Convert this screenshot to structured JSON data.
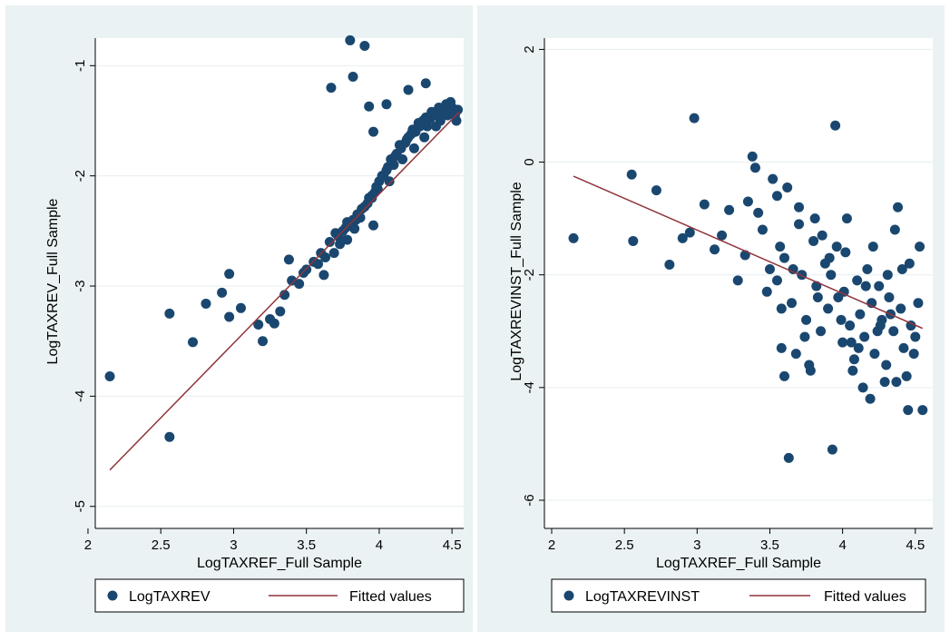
{
  "colors": {
    "outer_background": "#eaf2f3",
    "plot_background": "#ffffff",
    "grid": "#e6eef0",
    "marker": "#1a476f",
    "fit_line": "#90353b"
  },
  "chart_data": [
    {
      "type": "scatter",
      "xlabel": "LogTAXREF_Full Sample",
      "ylabel": "LogTAXREV_Full Sample",
      "xlim": [
        2.05,
        4.58
      ],
      "ylim": [
        -5.2,
        -0.75
      ],
      "xticks": [
        2,
        2.5,
        3,
        3.5,
        4,
        4.5
      ],
      "xtick_labels": [
        "2",
        "2.5",
        "3",
        "3.5",
        "4",
        "4.5"
      ],
      "yticks": [
        -5,
        -4,
        -3,
        -2,
        -1
      ],
      "ytick_labels": [
        "-5",
        "-4",
        "-3",
        "-2",
        "-1"
      ],
      "grid": true,
      "legend_position": "bottom",
      "series": [
        {
          "name": "LogTAXREV",
          "kind": "scatter",
          "x": [
            2.15,
            2.56,
            2.56,
            2.72,
            2.81,
            2.92,
            2.97,
            2.97,
            3.05,
            3.17,
            3.2,
            3.25,
            3.28,
            3.32,
            3.35,
            3.38,
            3.4,
            3.45,
            3.48,
            3.5,
            3.55,
            3.58,
            3.6,
            3.63,
            3.66,
            3.67,
            3.7,
            3.72,
            3.75,
            3.78,
            3.8,
            3.82,
            3.82,
            3.85,
            3.88,
            3.9,
            3.92,
            3.93,
            3.95,
            3.96,
            3.96,
            3.97,
            3.98,
            4.0,
            4.02,
            4.05,
            4.08,
            4.1,
            4.12,
            4.15,
            4.18,
            4.2,
            4.22,
            4.25,
            4.28,
            4.3,
            4.33,
            4.35,
            4.38,
            4.4,
            4.42,
            4.45,
            4.48,
            4.5,
            4.52,
            4.54,
            3.78,
            3.83,
            3.87,
            3.9,
            3.95,
            3.99,
            4.03,
            4.06,
            4.11,
            4.14,
            4.19,
            4.23,
            4.27,
            4.32,
            4.36,
            4.41,
            4.46,
            4.49,
            4.53,
            3.62,
            3.69,
            3.73,
            3.77,
            3.84,
            3.93,
            4.07,
            4.16,
            4.24,
            4.31,
            4.39,
            4.47,
            4.05,
            4.2,
            4.32
          ],
          "y": [
            -3.82,
            -4.37,
            -3.25,
            -3.51,
            -3.16,
            -3.06,
            -2.89,
            -3.28,
            -3.2,
            -3.35,
            -3.5,
            -3.3,
            -3.34,
            -3.23,
            -3.08,
            -2.76,
            -2.95,
            -2.98,
            -2.88,
            -2.85,
            -2.78,
            -2.8,
            -2.7,
            -2.74,
            -2.6,
            -1.2,
            -2.52,
            -2.55,
            -2.5,
            -2.42,
            -0.77,
            -1.1,
            -2.4,
            -2.35,
            -2.3,
            -0.82,
            -2.25,
            -1.37,
            -2.2,
            -1.6,
            -2.45,
            -2.15,
            -2.1,
            -2.05,
            -2.0,
            -1.95,
            -1.85,
            -1.9,
            -1.8,
            -1.75,
            -1.7,
            -1.65,
            -1.62,
            -1.6,
            -1.55,
            -1.5,
            -1.55,
            -1.48,
            -1.45,
            -1.45,
            -1.5,
            -1.42,
            -1.4,
            -1.38,
            -1.45,
            -1.4,
            -2.58,
            -2.48,
            -2.38,
            -2.28,
            -2.18,
            -2.12,
            -2.0,
            -1.92,
            -1.82,
            -1.72,
            -1.67,
            -1.58,
            -1.52,
            -1.47,
            -1.42,
            -1.38,
            -1.35,
            -1.33,
            -1.5,
            -2.9,
            -2.7,
            -2.62,
            -2.47,
            -2.4,
            -2.2,
            -2.05,
            -1.85,
            -1.75,
            -1.65,
            -1.55,
            -1.45,
            -1.35,
            -1.22,
            -1.16
          ]
        },
        {
          "name": "Fitted values",
          "kind": "line",
          "x": [
            2.15,
            4.55
          ],
          "y": [
            -4.67,
            -1.42
          ]
        }
      ]
    },
    {
      "type": "scatter",
      "xlabel": "LogTAXREF_Full Sample",
      "ylabel": "LogTAXREVINST_Full Sample",
      "xlim": [
        1.95,
        4.62
      ],
      "ylim": [
        -6.5,
        2.2
      ],
      "xticks": [
        2,
        2.5,
        3,
        3.5,
        4,
        4.5
      ],
      "xtick_labels": [
        "2",
        "2.5",
        "3",
        "3.5",
        "4",
        "4.5"
      ],
      "yticks": [
        -6,
        -4,
        -2,
        0,
        2
      ],
      "ytick_labels": [
        "-6",
        "-4",
        "-2",
        "0",
        "2"
      ],
      "grid": true,
      "legend_position": "bottom",
      "series": [
        {
          "name": "LogTAXREVINST",
          "kind": "scatter",
          "x": [
            2.15,
            2.55,
            2.56,
            2.72,
            2.81,
            2.9,
            2.95,
            2.98,
            3.05,
            3.12,
            3.17,
            3.22,
            3.28,
            3.33,
            3.35,
            3.38,
            3.4,
            3.42,
            3.45,
            3.48,
            3.5,
            3.52,
            3.55,
            3.57,
            3.58,
            3.6,
            3.62,
            3.63,
            3.65,
            3.68,
            3.7,
            3.72,
            3.75,
            3.77,
            3.8,
            3.82,
            3.85,
            3.88,
            3.9,
            3.93,
            3.95,
            3.97,
            4.0,
            4.02,
            4.05,
            4.07,
            4.1,
            4.12,
            4.15,
            4.17,
            4.2,
            4.22,
            4.25,
            4.27,
            4.3,
            4.32,
            4.35,
            4.37,
            4.4,
            4.42,
            4.45,
            4.47,
            4.5,
            4.52,
            4.55,
            3.58,
            3.66,
            3.74,
            3.83,
            3.91,
            3.99,
            4.08,
            4.16,
            4.24,
            4.33,
            4.41,
            4.49,
            3.7,
            3.86,
            4.03,
            4.19,
            4.36,
            4.53,
            3.6,
            3.78,
            3.96,
            4.14,
            4.29,
            4.46,
            3.92,
            4.01,
            4.11,
            4.21,
            4.31,
            4.44,
            3.55,
            3.81,
            4.06,
            4.26,
            4.38
          ],
          "y": [
            -1.35,
            -0.22,
            -1.4,
            -0.5,
            -1.82,
            -1.35,
            -1.25,
            0.78,
            -0.75,
            -1.55,
            -1.3,
            -0.85,
            -2.1,
            -1.65,
            -0.7,
            0.1,
            -0.1,
            -0.9,
            -1.2,
            -2.3,
            -1.9,
            -0.3,
            -0.6,
            -1.5,
            -3.3,
            -1.7,
            -0.45,
            -5.25,
            -2.5,
            -3.4,
            -1.1,
            -2.0,
            -2.8,
            -3.6,
            -1.4,
            -2.2,
            -3.0,
            -1.8,
            -2.6,
            -5.1,
            0.65,
            -2.4,
            -3.2,
            -1.6,
            -2.9,
            -3.7,
            -2.1,
            -2.7,
            -3.1,
            -1.9,
            -2.5,
            -3.4,
            -2.2,
            -2.8,
            -3.6,
            -2.4,
            -3.0,
            -3.9,
            -2.6,
            -3.3,
            -4.4,
            -2.9,
            -3.1,
            -2.5,
            -4.4,
            -2.6,
            -1.9,
            -3.1,
            -2.4,
            -1.7,
            -2.8,
            -3.5,
            -2.2,
            -3.0,
            -2.7,
            -1.9,
            -3.4,
            -0.8,
            -1.3,
            -1.0,
            -4.2,
            -1.2,
            -1.5,
            -3.8,
            -3.7,
            -1.5,
            -4.0,
            -3.9,
            -1.8,
            -2.0,
            -2.3,
            -3.3,
            -1.5,
            -2.0,
            -3.8,
            -2.1,
            -1.0,
            -3.2,
            -2.9,
            -0.8
          ],
          "_note": ""
        },
        {
          "name": "Fitted values",
          "kind": "line",
          "x": [
            2.15,
            4.55
          ],
          "y": [
            -0.25,
            -2.95
          ]
        }
      ]
    }
  ]
}
